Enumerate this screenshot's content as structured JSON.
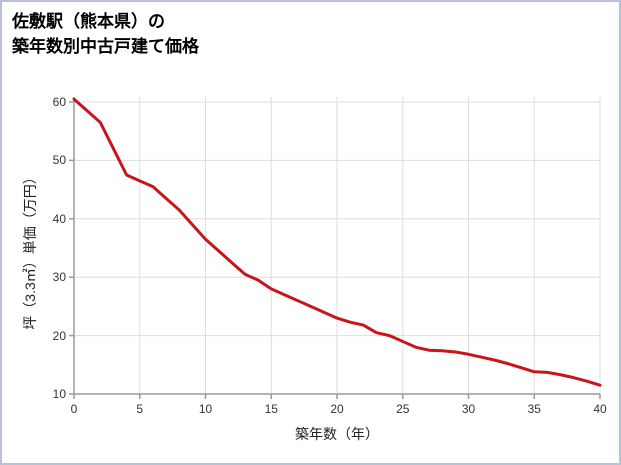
{
  "header": {
    "title_line1": "佐敷駅（熊本県）の",
    "title_line2": "築年数別中古戸建て価格"
  },
  "colors": {
    "border": "#b6c2d9",
    "grid": "#dddddd",
    "axis": "#999999",
    "line": "#c8151b",
    "tick_text": "#333333"
  },
  "chart_data": {
    "type": "line",
    "title": "佐敷駅（熊本県）の 築年数別中古戸建て価格",
    "xlabel": "築年数（年）",
    "ylabel": "坪（3.3㎡）単価（万円）",
    "x": [
      0,
      1,
      2,
      3,
      4,
      5,
      6,
      7,
      8,
      9,
      10,
      11,
      12,
      13,
      14,
      15,
      16,
      17,
      18,
      19,
      20,
      21,
      22,
      23,
      24,
      25,
      26,
      27,
      28,
      29,
      30,
      31,
      32,
      33,
      34,
      35,
      36,
      37,
      38,
      39,
      40
    ],
    "values": [
      60.5,
      58.5,
      56.5,
      52,
      47.5,
      46.5,
      45.5,
      43.5,
      41.5,
      39,
      36.5,
      34.5,
      32.5,
      30.5,
      29.5,
      28,
      27,
      26,
      25,
      24,
      23,
      22.3,
      21.8,
      20.5,
      20,
      19,
      18,
      17.5,
      17.4,
      17.2,
      16.8,
      16.3,
      15.8,
      15.2,
      14.5,
      13.8,
      13.7,
      13.3,
      12.8,
      12.2,
      11.5
    ],
    "xlim": [
      0,
      40
    ],
    "ylim": [
      10,
      61
    ],
    "x_ticks": [
      0,
      5,
      10,
      15,
      20,
      25,
      30,
      35,
      40
    ],
    "y_ticks": [
      10,
      20,
      30,
      40,
      50,
      60
    ],
    "grid": true,
    "legend": "none"
  }
}
